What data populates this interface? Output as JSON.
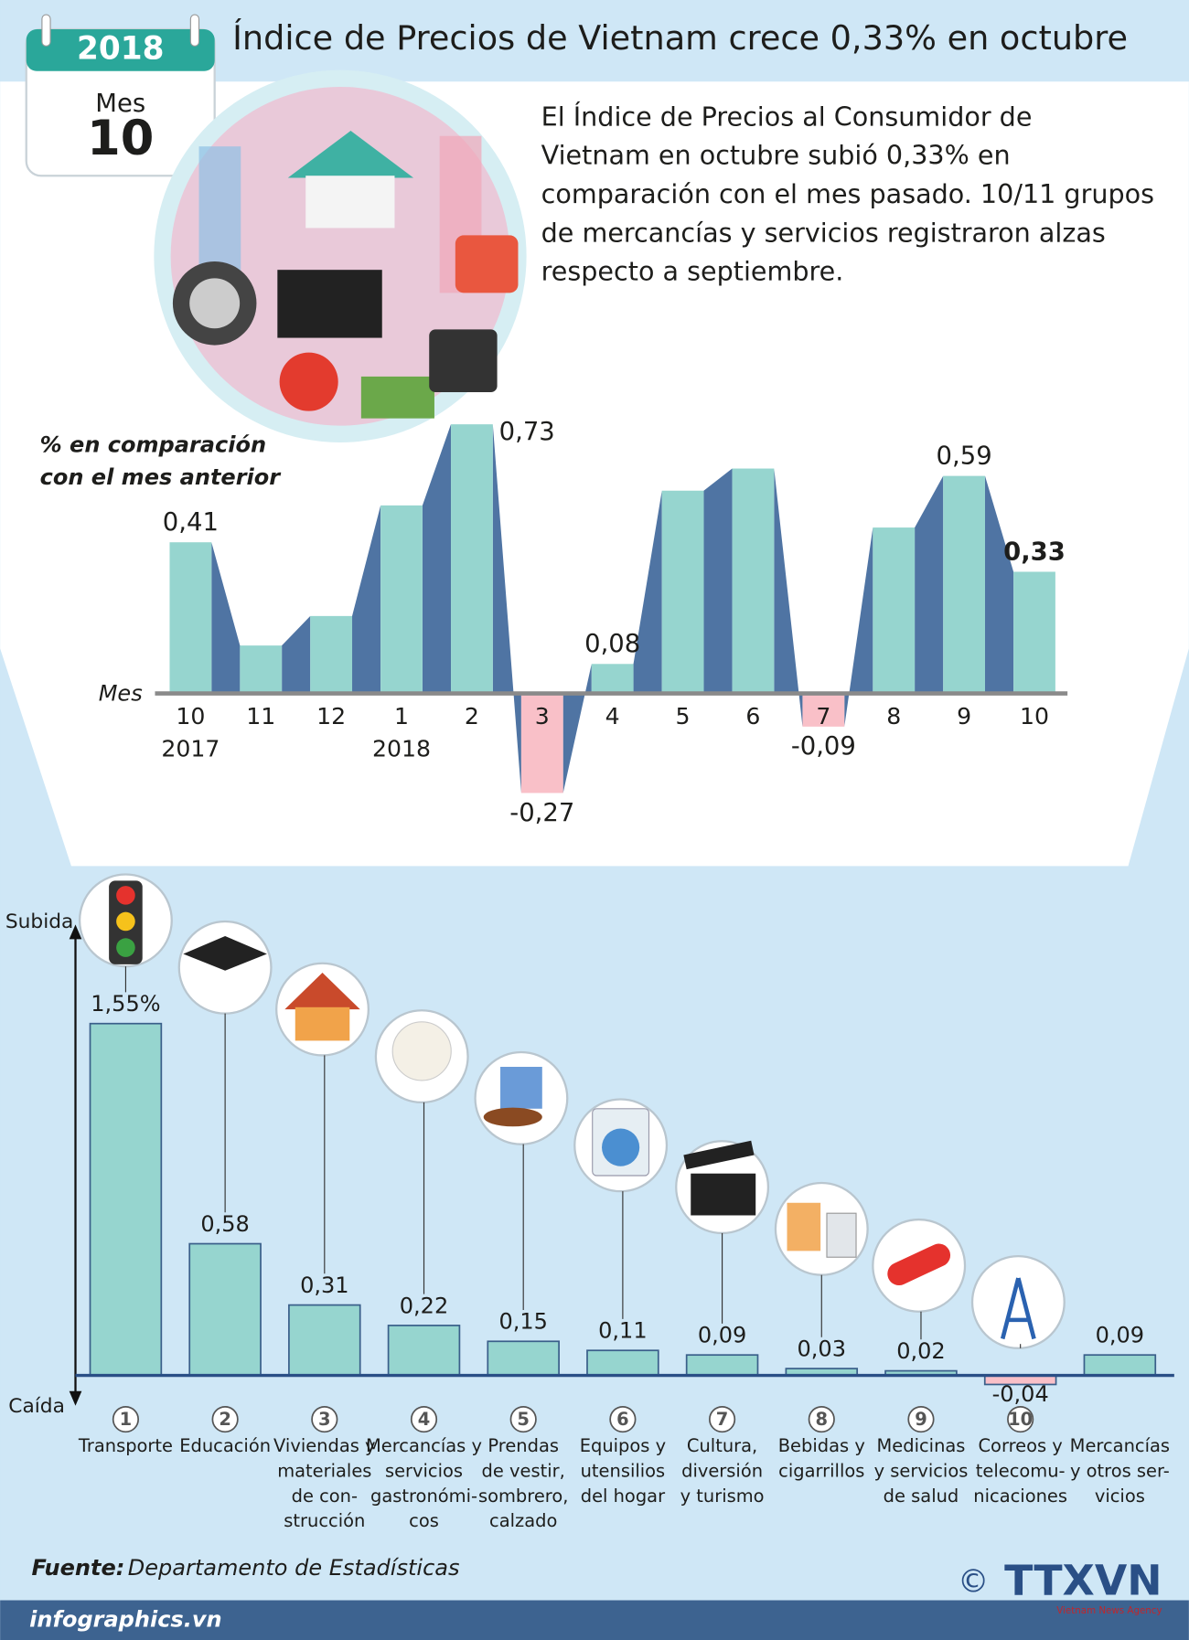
{
  "header": {
    "year": "2018",
    "month_label": "Mes",
    "month": "10",
    "title": "Índice de Precios de Vietnam crece 0,33% en octubre"
  },
  "description": [
    "El Índice de Precios al Consumidor de",
    "Vietnam en octubre subió 0,33% en",
    "comparación con el mes pasado. 10/11 grupos",
    "de mercancías y servicios registraron alzas",
    "respecto a septiembre."
  ],
  "chart_data": [
    {
      "type": "bar",
      "y_label": [
        "% en comparación",
        "con el mes anterior"
      ],
      "x_label": "Mes",
      "categories": [
        "10",
        "11",
        "12",
        "1",
        "2",
        "3",
        "4",
        "5",
        "6",
        "7",
        "8",
        "9",
        "10"
      ],
      "years": [
        "2017",
        null,
        null,
        "2018",
        null,
        null,
        null,
        null,
        null,
        null,
        null,
        null,
        null
      ],
      "values": [
        0.41,
        0.13,
        0.21,
        0.51,
        0.73,
        -0.27,
        0.08,
        0.55,
        0.61,
        -0.09,
        0.45,
        0.59,
        0.33
      ],
      "value_labels": [
        "0,41",
        null,
        null,
        null,
        "0,73",
        "-0,27",
        "0,08",
        null,
        null,
        "-0,09",
        null,
        "0,59",
        "0,33"
      ],
      "color": "#96d5cf",
      "negative_color": "#f9c0c8",
      "connector_color": "#4f74a3",
      "ylim": [
        -0.4,
        0.8
      ]
    },
    {
      "type": "bar",
      "y_top_label": "Subida",
      "y_bottom_label": "Caída",
      "numbers": [
        "1",
        "2",
        "3",
        "4",
        "5",
        "6",
        "7",
        "8",
        "9",
        "10",
        null
      ],
      "categories": [
        [
          "Transporte"
        ],
        [
          "Educación"
        ],
        [
          "Viviendas y",
          "materiales",
          "de con-",
          "strucción"
        ],
        [
          "Mercancías y",
          "servicios",
          "gastronómi-",
          "cos"
        ],
        [
          "Prendas",
          "de vestir,",
          "sombrero,",
          "calzado"
        ],
        [
          "Equipos y",
          "utensilios",
          "del hogar"
        ],
        [
          "Cultura,",
          "diversión",
          "y turismo"
        ],
        [
          "Bebidas y",
          "cigarrillos"
        ],
        [
          "Medicinas",
          "y servicios",
          "de salud"
        ],
        [
          "Correos y",
          "telecomu-",
          "nicaciones"
        ],
        [
          "Mercancías",
          "y otros ser-",
          "vicios"
        ]
      ],
      "values": [
        1.55,
        0.58,
        0.31,
        0.22,
        0.15,
        0.11,
        0.09,
        0.03,
        0.02,
        -0.04,
        0.09
      ],
      "value_labels": [
        "1,55%",
        "0,58",
        "0,31",
        "0,22",
        "0,15",
        "0,11",
        "0,09",
        "0,03",
        "0,02",
        "-0,04",
        "0,09"
      ],
      "color": "#96d5cf",
      "negative_color": "#f9c0c8",
      "ylim": [
        -0.1,
        1.7
      ]
    }
  ],
  "footer": {
    "source_label": "Fuente:",
    "source": "Departamento de Estadísticas",
    "site": "infographics.vn",
    "copyright": "©",
    "logo": "TTXVN",
    "agency": "Vietnam News Agency"
  }
}
